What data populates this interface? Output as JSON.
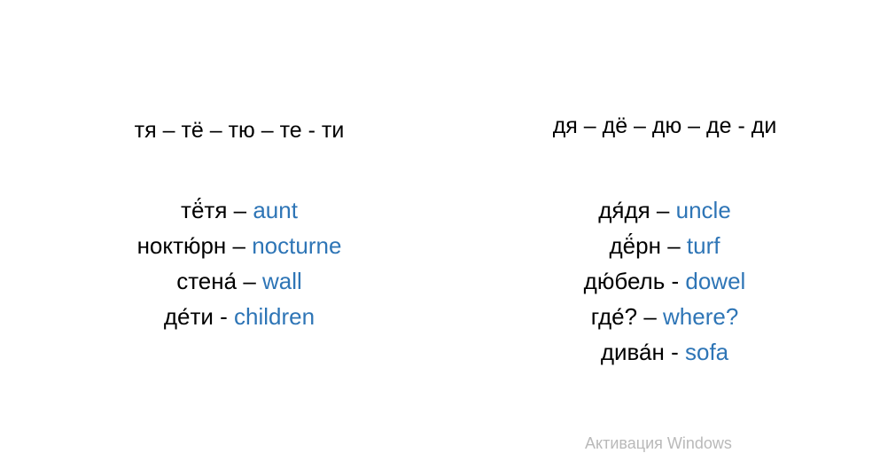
{
  "left": {
    "header": "тя – тё – тю – те - ти",
    "words": [
      {
        "ru": "тё́тя",
        "sep": " – ",
        "en": "aunt"
      },
      {
        "ru": "ноктю́рн",
        "sep": " – ",
        "en": "nocturne"
      },
      {
        "ru": "стена́",
        "sep": " – ",
        "en": "wall"
      },
      {
        "ru": "де́ти",
        "sep": " - ",
        "en": "children"
      }
    ]
  },
  "right": {
    "header": "дя – дё – дю – де - ди",
    "words": [
      {
        "ru": "дя́дя",
        "sep": " – ",
        "en": "uncle"
      },
      {
        "ru": "дё́рн",
        "sep": " – ",
        "en": "turf"
      },
      {
        "ru": "дю́бель",
        "sep": " - ",
        "en": "dowel"
      },
      {
        "ru": "где́?",
        "sep": " – ",
        "en": "where?"
      },
      {
        "ru": "дива́н",
        "sep": " - ",
        "en": "sofa"
      }
    ]
  },
  "watermark": "Активация Windows",
  "colors": {
    "translation": "#2e75b6",
    "text": "#000000"
  }
}
